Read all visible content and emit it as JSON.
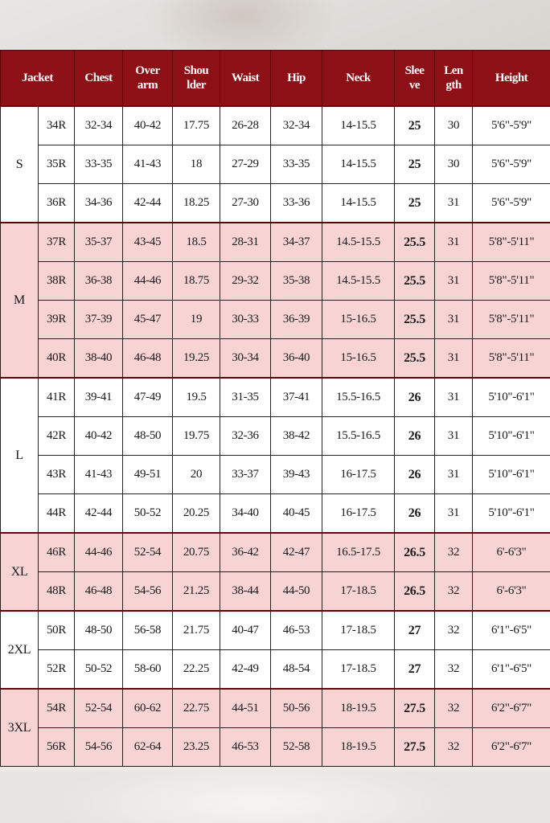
{
  "colors": {
    "header_bg": "#8c1015",
    "header_text": "#ffffff",
    "pink_row": "#f8d3d3",
    "white_row": "#ffffff"
  },
  "headers": [
    "Jacket",
    "Chest",
    "Over arm",
    "Shou lder",
    "Waist",
    "Hip",
    "Neck",
    "Slee ve",
    "Len gth",
    "Height"
  ],
  "header_lines": [
    [
      "Jacket"
    ],
    [
      "Chest"
    ],
    [
      "Over",
      "arm"
    ],
    [
      "Shou",
      "lder"
    ],
    [
      "Waist"
    ],
    [
      "Hip"
    ],
    [
      "Neck"
    ],
    [
      "Slee",
      "ve"
    ],
    [
      "Len",
      "gth"
    ],
    [
      "Height"
    ]
  ],
  "groups": [
    {
      "size": "S",
      "shade": "white",
      "rows": [
        [
          "34R",
          "32-34",
          "40-42",
          "17.75",
          "26-28",
          "32-34",
          "14-15.5",
          "25",
          "30",
          "5'6\"-5'9\""
        ],
        [
          "35R",
          "33-35",
          "41-43",
          "18",
          "27-29",
          "33-35",
          "14-15.5",
          "25",
          "30",
          "5'6\"-5'9\""
        ],
        [
          "36R",
          "34-36",
          "42-44",
          "18.25",
          "27-30",
          "33-36",
          "14-15.5",
          "25",
          "31",
          "5'6\"-5'9\""
        ]
      ]
    },
    {
      "size": "M",
      "shade": "pink",
      "rows": [
        [
          "37R",
          "35-37",
          "43-45",
          "18.5",
          "28-31",
          "34-37",
          "14.5-15.5",
          "25.5",
          "31",
          "5'8\"-5'11\""
        ],
        [
          "38R",
          "36-38",
          "44-46",
          "18.75",
          "29-32",
          "35-38",
          "14.5-15.5",
          "25.5",
          "31",
          "5'8\"-5'11\""
        ],
        [
          "39R",
          "37-39",
          "45-47",
          "19",
          "30-33",
          "36-39",
          "15-16.5",
          "25.5",
          "31",
          "5'8\"-5'11\""
        ],
        [
          "40R",
          "38-40",
          "46-48",
          "19.25",
          "30-34",
          "36-40",
          "15-16.5",
          "25.5",
          "31",
          "5'8\"-5'11\""
        ]
      ]
    },
    {
      "size": "L",
      "shade": "white",
      "rows": [
        [
          "41R",
          "39-41",
          "47-49",
          "19.5",
          "31-35",
          "37-41",
          "15.5-16.5",
          "26",
          "31",
          "5'10\"-6'1\""
        ],
        [
          "42R",
          "40-42",
          "48-50",
          "19.75",
          "32-36",
          "38-42",
          "15.5-16.5",
          "26",
          "31",
          "5'10\"-6'1\""
        ],
        [
          "43R",
          "41-43",
          "49-51",
          "20",
          "33-37",
          "39-43",
          "16-17.5",
          "26",
          "31",
          "5'10\"-6'1\""
        ],
        [
          "44R",
          "42-44",
          "50-52",
          "20.25",
          "34-40",
          "40-45",
          "16-17.5",
          "26",
          "31",
          "5'10\"-6'1\""
        ]
      ]
    },
    {
      "size": "XL",
      "shade": "pink",
      "rows": [
        [
          "46R",
          "44-46",
          "52-54",
          "20.75",
          "36-42",
          "42-47",
          "16.5-17.5",
          "26.5",
          "32",
          "6'-6'3\""
        ],
        [
          "48R",
          "46-48",
          "54-56",
          "21.25",
          "38-44",
          "44-50",
          "17-18.5",
          "26.5",
          "32",
          "6'-6'3\""
        ]
      ]
    },
    {
      "size": "2XL",
      "shade": "white",
      "rows": [
        [
          "50R",
          "48-50",
          "56-58",
          "21.75",
          "40-47",
          "46-53",
          "17-18.5",
          "27",
          "32",
          "6'1\"-6'5\""
        ],
        [
          "52R",
          "50-52",
          "58-60",
          "22.25",
          "42-49",
          "48-54",
          "17-18.5",
          "27",
          "32",
          "6'1\"-6'5\""
        ]
      ]
    },
    {
      "size": "3XL",
      "shade": "pink",
      "rows": [
        [
          "54R",
          "52-54",
          "60-62",
          "22.75",
          "44-51",
          "50-56",
          "18-19.5",
          "27.5",
          "32",
          "6'2\"-6'7\""
        ],
        [
          "56R",
          "54-56",
          "62-64",
          "23.25",
          "46-53",
          "52-58",
          "18-19.5",
          "27.5",
          "32",
          "6'2\"-6'7\""
        ]
      ]
    }
  ]
}
